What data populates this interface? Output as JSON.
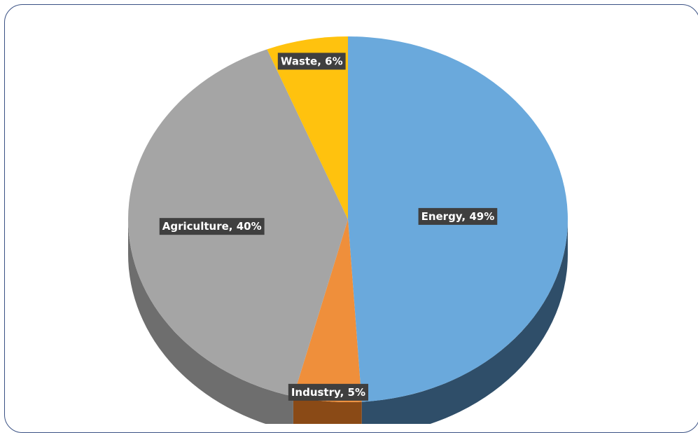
{
  "chart_data": {
    "type": "pie",
    "title": "",
    "slices": [
      {
        "label": "Energy",
        "value": 49,
        "percent_label": "49%",
        "color": "#6aa9dc",
        "side_color": "#2f4e69"
      },
      {
        "label": "Industry",
        "value": 5,
        "percent_label": "5%",
        "color": "#ef8f3b",
        "side_color": "#8a4a16"
      },
      {
        "label": "Agriculture",
        "value": 40,
        "percent_label": "40%",
        "color": "#a5a5a5",
        "side_color": "#6e6e6e"
      },
      {
        "label": "Waste",
        "value": 6,
        "percent_label": "6%",
        "color": "#ffc20e",
        "side_color": "#a77c00"
      }
    ],
    "data_labels": [
      "Energy, 49%",
      "Industry, 5%",
      "Agriculture, 40%",
      "Waste, 6%"
    ],
    "label_background": "#3f3f3f",
    "style": "3d-pie",
    "legend": "none"
  }
}
